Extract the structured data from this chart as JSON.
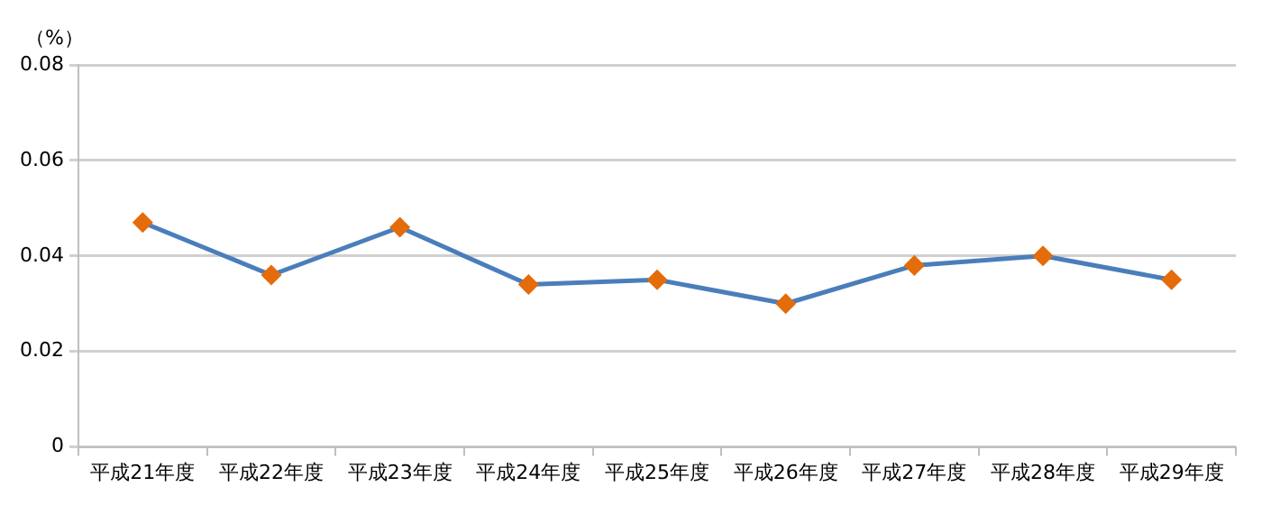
{
  "chart_data": {
    "type": "line",
    "ylabel": "（%）",
    "categories": [
      "平成21年度",
      "平成22年度",
      "平成23年度",
      "平成24年度",
      "平成25年度",
      "平成26年度",
      "平成27年度",
      "平成28年度",
      "平成29年度"
    ],
    "series": [
      {
        "color": "#4a7ebb",
        "colors": [
          "#e46c0a",
          "#e46c0a",
          "#e46c0a",
          "#e46c0a",
          "#e46c0a",
          "#e46c0a",
          "#e46c0a",
          "#e46c0a",
          "#e46c0a"
        ],
        "values": [
          0.047,
          0.036,
          0.046,
          0.034,
          0.035,
          0.03,
          0.038,
          0.04,
          0.035
        ]
      }
    ],
    "ylim": [
      0,
      0.08
    ],
    "yticks": [
      0,
      0.02,
      0.04,
      0.06,
      0.08
    ],
    "grid": "y",
    "marker": "diamond",
    "line_style": "solid",
    "legend": false
  }
}
